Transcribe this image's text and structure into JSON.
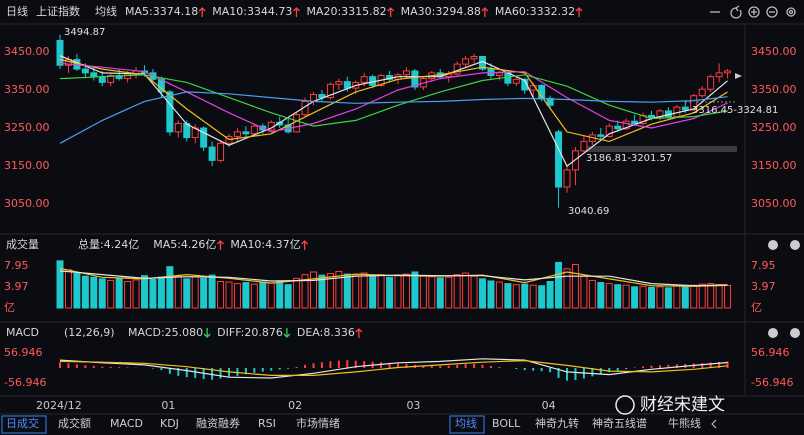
{
  "toolbar": {
    "period": "日线",
    "ma": "均线"
  },
  "chart_data": [
    {
      "type": "candlestick",
      "title": "上证指数",
      "ylim": [
        2990,
        3505
      ],
      "yticks": [
        {
          "value": 3450,
          "label": "3450.00"
        },
        {
          "value": 3350,
          "label": "3350.00"
        },
        {
          "value": 3250,
          "label": "3250.00"
        },
        {
          "value": 3150,
          "label": "3150.00"
        },
        {
          "value": 3050,
          "label": "3050.00"
        }
      ],
      "xticks": [
        {
          "value": 0,
          "label": "2024/12"
        },
        {
          "value": 12,
          "label": "01"
        },
        {
          "value": 27,
          "label": "02"
        },
        {
          "value": 41,
          "label": "03"
        },
        {
          "value": 57,
          "label": "04"
        }
      ],
      "up_color": "#ff3d3d",
      "down_color": "#1fc8cc",
      "ohlc": [
        [
          3480,
          3494.87,
          3405,
          3415
        ],
        [
          3415,
          3440,
          3395,
          3430
        ],
        [
          3430,
          3445,
          3400,
          3405
        ],
        [
          3405,
          3420,
          3380,
          3395
        ],
        [
          3395,
          3410,
          3375,
          3385
        ],
        [
          3385,
          3400,
          3360,
          3370
        ],
        [
          3370,
          3395,
          3360,
          3388
        ],
        [
          3388,
          3405,
          3375,
          3380
        ],
        [
          3380,
          3400,
          3370,
          3392
        ],
        [
          3392,
          3410,
          3380,
          3400
        ],
        [
          3400,
          3415,
          3385,
          3395
        ],
        [
          3395,
          3405,
          3370,
          3378
        ],
        [
          3378,
          3385,
          3330,
          3345
        ],
        [
          3345,
          3350,
          3230,
          3240
        ],
        [
          3240,
          3270,
          3225,
          3262
        ],
        [
          3262,
          3270,
          3215,
          3225
        ],
        [
          3225,
          3260,
          3210,
          3250
        ],
        [
          3250,
          3255,
          3190,
          3200
        ],
        [
          3200,
          3215,
          3150,
          3165
        ],
        [
          3165,
          3215,
          3160,
          3210
        ],
        [
          3210,
          3235,
          3200,
          3228
        ],
        [
          3228,
          3250,
          3215,
          3240
        ],
        [
          3240,
          3255,
          3228,
          3235
        ],
        [
          3235,
          3260,
          3230,
          3255
        ],
        [
          3255,
          3262,
          3235,
          3245
        ],
        [
          3245,
          3270,
          3240,
          3265
        ],
        [
          3265,
          3280,
          3250,
          3258
        ],
        [
          3258,
          3275,
          3235,
          3240
        ],
        [
          3240,
          3290,
          3238,
          3285
        ],
        [
          3285,
          3330,
          3280,
          3320
        ],
        [
          3320,
          3345,
          3310,
          3338
        ],
        [
          3338,
          3350,
          3320,
          3330
        ],
        [
          3330,
          3370,
          3325,
          3365
        ],
        [
          3365,
          3380,
          3350,
          3372
        ],
        [
          3372,
          3385,
          3345,
          3355
        ],
        [
          3355,
          3375,
          3340,
          3370
        ],
        [
          3370,
          3395,
          3360,
          3385
        ],
        [
          3385,
          3390,
          3355,
          3362
        ],
        [
          3362,
          3392,
          3358,
          3388
        ],
        [
          3388,
          3400,
          3370,
          3378
        ],
        [
          3378,
          3395,
          3365,
          3390
        ],
        [
          3390,
          3410,
          3380,
          3400
        ],
        [
          3400,
          3405,
          3350,
          3358
        ],
        [
          3358,
          3385,
          3350,
          3380
        ],
        [
          3380,
          3400,
          3372,
          3395
        ],
        [
          3395,
          3405,
          3380,
          3385
        ],
        [
          3385,
          3400,
          3370,
          3392
        ],
        [
          3392,
          3425,
          3388,
          3418
        ],
        [
          3418,
          3440,
          3410,
          3432
        ],
        [
          3432,
          3445,
          3420,
          3438
        ],
        [
          3438,
          3440,
          3400,
          3405
        ],
        [
          3405,
          3420,
          3380,
          3388
        ],
        [
          3388,
          3400,
          3375,
          3395
        ],
        [
          3395,
          3400,
          3360,
          3368
        ],
        [
          3368,
          3385,
          3360,
          3378
        ],
        [
          3378,
          3382,
          3340,
          3350
        ],
        [
          3350,
          3370,
          3330,
          3362
        ],
        [
          3362,
          3365,
          3320,
          3328
        ],
        [
          3328,
          3335,
          3300,
          3310
        ],
        [
          3240,
          3245,
          3040.69,
          3095
        ],
        [
          3095,
          3150,
          3080,
          3140
        ],
        [
          3140,
          3200,
          3100,
          3190
        ],
        [
          3190,
          3230,
          3186.81,
          3215
        ],
        [
          3215,
          3240,
          3205,
          3232
        ],
        [
          3232,
          3250,
          3220,
          3228
        ],
        [
          3228,
          3262,
          3225,
          3255
        ],
        [
          3255,
          3270,
          3240,
          3248
        ],
        [
          3248,
          3275,
          3245,
          3268
        ],
        [
          3268,
          3285,
          3255,
          3262
        ],
        [
          3262,
          3290,
          3258,
          3283
        ],
        [
          3283,
          3295,
          3270,
          3278
        ],
        [
          3278,
          3300,
          3270,
          3295
        ],
        [
          3295,
          3305,
          3275,
          3280
        ],
        [
          3280,
          3310,
          3278,
          3305
        ],
        [
          3305,
          3320,
          3290,
          3298
        ],
        [
          3298,
          3340,
          3295,
          3335
        ],
        [
          3335,
          3360,
          3330,
          3352
        ],
        [
          3352,
          3390,
          3345,
          3385
        ],
        [
          3385,
          3420,
          3370,
          3395
        ],
        [
          3395,
          3405,
          3380,
          3400
        ]
      ],
      "series": [
        {
          "name": "MA5:3374.18",
          "color": "#e6e6e6",
          "trend": "up",
          "x": [
            0,
            5,
            10,
            15,
            20,
            25,
            30,
            35,
            40,
            45,
            50,
            55,
            60,
            65,
            70,
            75,
            79
          ],
          "values": [
            3440,
            3395,
            3392,
            3260,
            3205,
            3250,
            3320,
            3362,
            3385,
            3385,
            3425,
            3375,
            3150,
            3235,
            3275,
            3300,
            3374.18
          ]
        },
        {
          "name": "MA10:3344.73",
          "color": "#f0c020",
          "trend": "up",
          "x": [
            0,
            5,
            10,
            15,
            20,
            25,
            30,
            35,
            40,
            45,
            50,
            55,
            60,
            65,
            70,
            75,
            79
          ],
          "values": [
            3430,
            3405,
            3390,
            3300,
            3220,
            3235,
            3290,
            3345,
            3378,
            3390,
            3410,
            3395,
            3240,
            3215,
            3260,
            3290,
            3344.73
          ]
        },
        {
          "name": "MA20:3315.82",
          "color": "#e040e0",
          "trend": "up",
          "x": [
            0,
            5,
            10,
            15,
            20,
            25,
            30,
            35,
            40,
            45,
            50,
            55,
            60,
            65,
            70,
            75,
            79
          ],
          "values": [
            3420,
            3410,
            3398,
            3345,
            3290,
            3240,
            3262,
            3300,
            3350,
            3380,
            3395,
            3398,
            3330,
            3270,
            3250,
            3275,
            3315.82
          ]
        },
        {
          "name": "MA30:3294.88",
          "color": "#40d040",
          "trend": "up",
          "x": [
            0,
            5,
            10,
            15,
            20,
            25,
            30,
            35,
            40,
            45,
            50,
            55,
            60,
            65,
            70,
            75,
            79
          ],
          "values": [
            3380,
            3385,
            3390,
            3370,
            3330,
            3290,
            3255,
            3270,
            3310,
            3345,
            3375,
            3390,
            3360,
            3310,
            3275,
            3280,
            3294.88
          ]
        },
        {
          "name": "MA60:3332.32",
          "color": "#4a9ef0",
          "trend": "up",
          "x": [
            0,
            5,
            10,
            15,
            20,
            25,
            30,
            35,
            40,
            45,
            50,
            55,
            60,
            65,
            70,
            75,
            79
          ],
          "values": [
            3210,
            3270,
            3320,
            3345,
            3340,
            3330,
            3320,
            3315,
            3318,
            3320,
            3325,
            3328,
            3325,
            3320,
            3318,
            3322,
            3332.32
          ]
        }
      ],
      "annotations": [
        "3494.87",
        "3186.81-3201.57",
        "3040.69",
        "3316.45-3324.81"
      ]
    },
    {
      "type": "volume",
      "title": "成交量",
      "ylim": [
        0,
        10
      ],
      "yticks": [
        7.95,
        3.97,
        {
          "value": 0,
          "label": "亿"
        }
      ],
      "bars": {
        "name": "总量:4.24亿",
        "color": "#4cc8e8",
        "values": [
          8.9,
          7.2,
          6.5,
          6.0,
          5.8,
          5.5,
          5.2,
          5.6,
          5.0,
          5.3,
          6.1,
          5.4,
          5.8,
          7.8,
          6.0,
          5.5,
          5.9,
          5.6,
          6.2,
          5.0,
          4.9,
          4.6,
          4.8,
          4.5,
          4.9,
          4.7,
          5.0,
          4.4,
          5.6,
          6.3,
          6.8,
          6.2,
          6.5,
          6.9,
          6.4,
          6.1,
          6.6,
          6.0,
          6.3,
          5.8,
          6.2,
          6.4,
          6.8,
          6.0,
          5.9,
          5.7,
          5.8,
          6.3,
          6.6,
          6.0,
          5.5,
          5.1,
          4.9,
          4.6,
          4.4,
          4.5,
          4.3,
          4.2,
          5.0,
          8.6,
          7.4,
          8.2,
          6.0,
          5.2,
          4.8,
          4.6,
          4.4,
          4.3,
          4.0,
          4.1,
          3.9,
          4.0,
          3.8,
          4.2,
          4.1,
          4.3,
          4.5,
          4.6,
          4.4,
          4.24
        ]
      },
      "series": [
        {
          "name": "MA5:4.26亿",
          "color": "#f0c020",
          "trend": "up",
          "x": [
            0,
            5,
            10,
            15,
            20,
            25,
            30,
            35,
            40,
            45,
            50,
            55,
            60,
            65,
            70,
            75,
            79
          ],
          "values": [
            7.5,
            5.8,
            5.5,
            6.3,
            5.6,
            4.7,
            5.5,
            6.4,
            6.1,
            6.0,
            6.2,
            4.8,
            6.8,
            5.5,
            4.2,
            4.1,
            4.26
          ]
        },
        {
          "name": "MA10:4.37亿",
          "color": "#e6e6e6",
          "trend": "up",
          "x": [
            0,
            5,
            10,
            15,
            20,
            25,
            30,
            35,
            40,
            45,
            50,
            55,
            60,
            65,
            70,
            75,
            79
          ],
          "values": [
            7.0,
            6.3,
            5.6,
            5.9,
            5.8,
            5.1,
            5.2,
            6.0,
            6.2,
            6.1,
            6.1,
            5.3,
            6.0,
            6.0,
            4.6,
            4.2,
            4.37
          ]
        }
      ]
    },
    {
      "type": "macd",
      "title": "MACD",
      "params": "(12,26,9)",
      "ylim": [
        -80,
        80
      ],
      "yticks": [
        56.946,
        -56.946
      ],
      "bars": {
        "name": "MACD:25.080",
        "color": "#ff4d4d",
        "trend": "down",
        "values": [
          22,
          18,
          14,
          10,
          8,
          5,
          4,
          3,
          2,
          1,
          0,
          -2,
          -8,
          -22,
          -30,
          -35,
          -38,
          -42,
          -45,
          -40,
          -35,
          -30,
          -24,
          -18,
          -14,
          -10,
          -6,
          -3,
          4,
          12,
          18,
          22,
          26,
          28,
          30,
          28,
          26,
          24,
          22,
          20,
          18,
          16,
          12,
          10,
          9,
          8,
          9,
          12,
          15,
          16,
          12,
          8,
          4,
          0,
          -4,
          -8,
          -10,
          -12,
          -16,
          -38,
          -48,
          -46,
          -40,
          -32,
          -24,
          -16,
          -10,
          -4,
          2,
          6,
          9,
          11,
          12,
          14,
          15,
          17,
          19,
          21,
          23,
          25.08
        ]
      },
      "series": [
        {
          "name": "DIFF:20.876",
          "color": "#e6e6e6",
          "trend": "down",
          "x": [
            0,
            5,
            10,
            15,
            20,
            25,
            30,
            35,
            40,
            45,
            50,
            55,
            60,
            65,
            70,
            75,
            79
          ],
          "values": [
            30,
            20,
            12,
            -10,
            -35,
            -38,
            -20,
            5,
            20,
            25,
            35,
            30,
            -15,
            -25,
            -5,
            10,
            20.876
          ]
        },
        {
          "name": "DEA:8.336",
          "color": "#f0c020",
          "trend": "up",
          "x": [
            0,
            5,
            10,
            15,
            20,
            25,
            30,
            35,
            40,
            45,
            50,
            55,
            60,
            65,
            70,
            75,
            79
          ],
          "values": [
            25,
            22,
            18,
            5,
            -15,
            -28,
            -28,
            -15,
            2,
            12,
            22,
            28,
            10,
            -12,
            -15,
            -5,
            8.336
          ]
        }
      ]
    }
  ],
  "bottom_tabs": {
    "indicators": [
      "日成交",
      "成交额",
      "MACD",
      "KDJ",
      "融资融券",
      "RSI",
      "市场情绪"
    ],
    "overlays": [
      "均线",
      "BOLL",
      "神奇九转",
      "神奇五线谱",
      "牛熊线"
    ]
  },
  "watermark": "财经宋建文"
}
